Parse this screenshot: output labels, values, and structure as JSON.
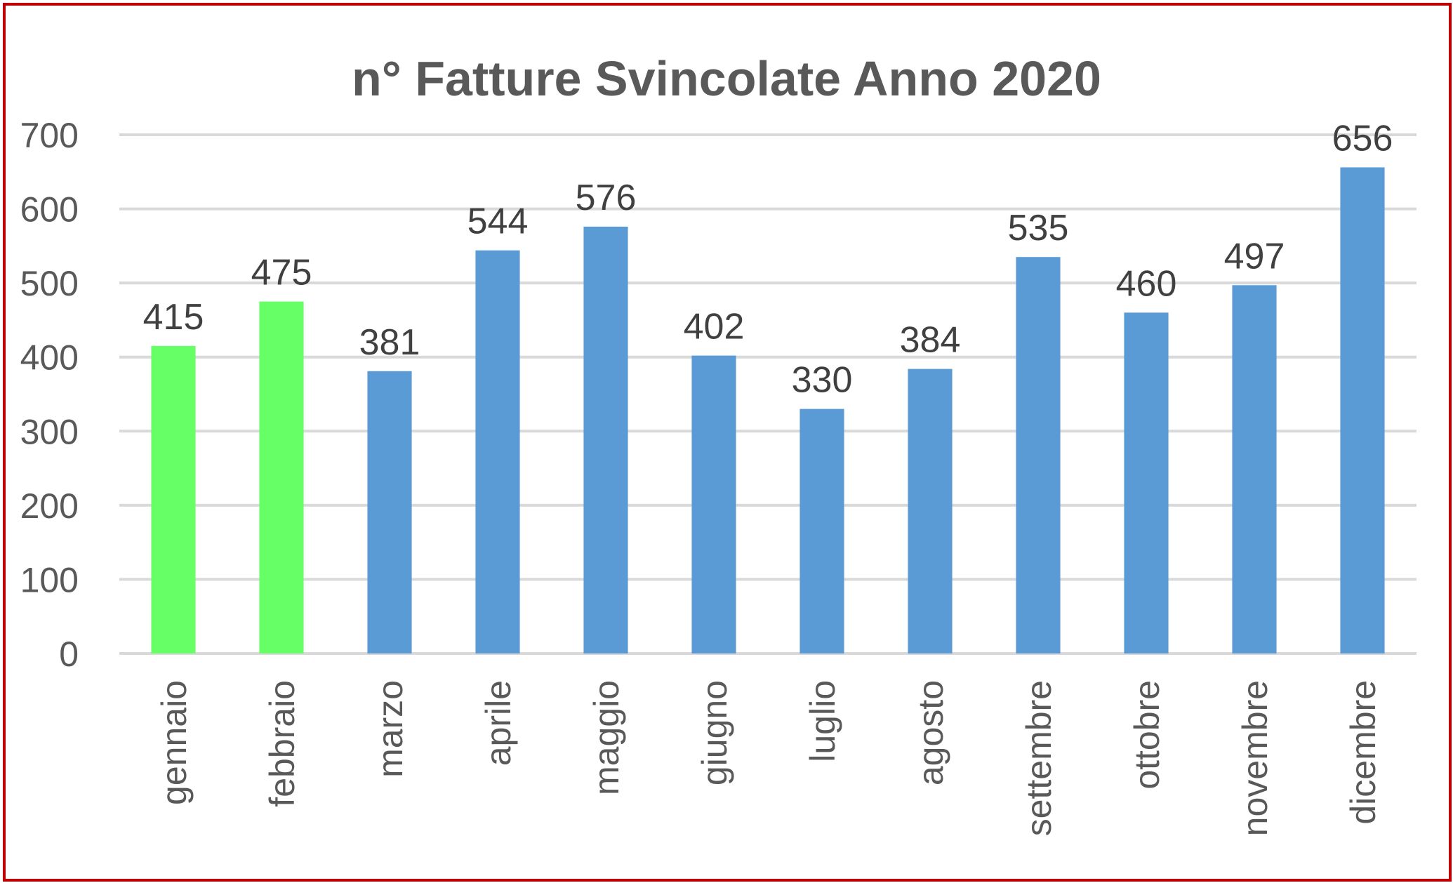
{
  "colors": {
    "frame": "#c00000",
    "highlight_bar": "#66ff66",
    "default_bar": "#5b9bd5",
    "gridline": "#d9d9d9",
    "axis_text": "#595959",
    "value_text": "#404040"
  },
  "chart_data": {
    "type": "bar",
    "title": "n° Fatture Svincolate Anno 2020",
    "xlabel": "",
    "ylabel": "",
    "ylim": [
      0,
      700
    ],
    "yticks": [
      0,
      100,
      200,
      300,
      400,
      500,
      600,
      700
    ],
    "grid": true,
    "categories": [
      "gennaio",
      "febbraio",
      "marzo",
      "aprile",
      "maggio",
      "giugno",
      "luglio",
      "agosto",
      "settembre",
      "ottobre",
      "novembre",
      "dicembre"
    ],
    "values": [
      415,
      475,
      381,
      544,
      576,
      402,
      330,
      384,
      535,
      460,
      497,
      656
    ],
    "bar_colors": [
      "#66ff66",
      "#66ff66",
      "#5b9bd5",
      "#5b9bd5",
      "#5b9bd5",
      "#5b9bd5",
      "#5b9bd5",
      "#5b9bd5",
      "#5b9bd5",
      "#5b9bd5",
      "#5b9bd5",
      "#5b9bd5"
    ],
    "data_labels": true
  }
}
